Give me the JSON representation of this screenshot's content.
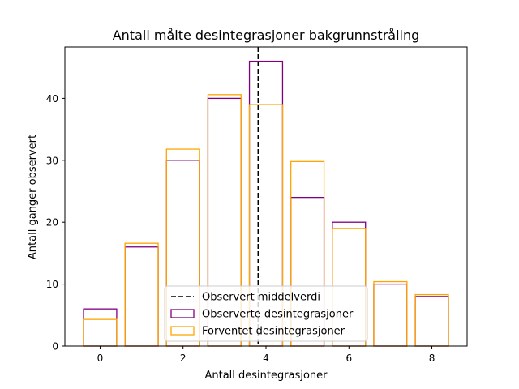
{
  "chart_data": {
    "type": "bar",
    "title": "Antall målte desintegrasjoner bakgrunnstråling",
    "xlabel": "Antall desintegrasjoner",
    "ylabel": "Antall ganger observert",
    "xlim": [
      -0.85,
      8.85
    ],
    "ylim": [
      0,
      48.3
    ],
    "x_ticks": [
      0,
      2,
      4,
      6,
      8
    ],
    "y_ticks": [
      0,
      10,
      20,
      30,
      40
    ],
    "x": [
      0,
      1,
      2,
      3,
      4,
      5,
      6,
      7,
      8
    ],
    "bar_width": 0.8,
    "observed_mean": 3.81,
    "series": [
      {
        "name": "Observerte desintegrasjoner",
        "color": "#800080",
        "values": [
          6,
          16,
          30,
          40,
          46,
          24,
          20,
          10,
          8
        ]
      },
      {
        "name": "Forventet desintegrasjoner",
        "color": "#ffa500",
        "values": [
          4.3,
          16.6,
          31.8,
          40.6,
          39.0,
          29.8,
          19.0,
          10.4,
          8.3
        ]
      }
    ],
    "mean_line": {
      "name": "Observert middelverdi",
      "color": "#000000",
      "style": "dashed"
    },
    "legend": {
      "placement": "lower-center",
      "entries": [
        "Observert middelverdi",
        "Observerte desintegrasjoner",
        "Forventet desintegrasjoner"
      ]
    },
    "grid": false
  }
}
